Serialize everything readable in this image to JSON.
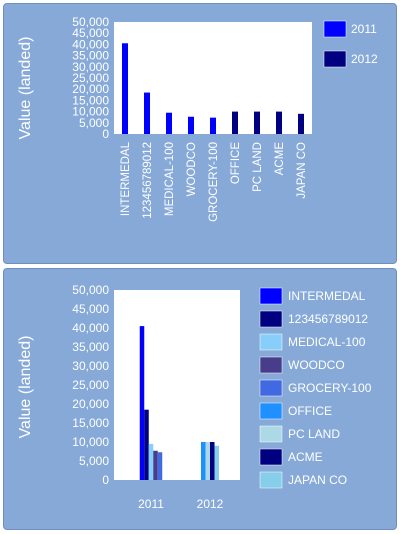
{
  "chart_data": [
    {
      "type": "bar",
      "ylabel": "Value (landed)",
      "ylim": [
        0,
        50000
      ],
      "yticks": [
        0,
        5000,
        10000,
        15000,
        20000,
        25000,
        30000,
        35000,
        40000,
        45000,
        50000
      ],
      "ytick_labels": [
        "0",
        "5,000",
        "10,000",
        "15,000",
        "20,000",
        "25,000",
        "30,000",
        "35,000",
        "40,000",
        "45,000",
        "50,000"
      ],
      "categories": [
        "INTERMEDAL",
        "123456789012",
        "MEDICAL-100",
        "WOODCO",
        "GROCERY-100",
        "OFFICE",
        "PC LAND",
        "ACME",
        "JAPAN CO"
      ],
      "series": [
        {
          "name": "2011",
          "color": "#0000ff",
          "values": [
            40500,
            18500,
            9500,
            7700,
            7300,
            null,
            null,
            null,
            null
          ]
        },
        {
          "name": "2012",
          "color": "#000080",
          "values": [
            null,
            null,
            null,
            null,
            null,
            10000,
            10000,
            10000,
            9000
          ]
        }
      ],
      "legend": "right",
      "grid": false
    },
    {
      "type": "bar",
      "ylabel": "Value (landed)",
      "ylim": [
        0,
        50000
      ],
      "yticks": [
        0,
        5000,
        10000,
        15000,
        20000,
        25000,
        30000,
        35000,
        40000,
        45000,
        50000
      ],
      "ytick_labels": [
        "0",
        "5,000",
        "10,000",
        "15,000",
        "20,000",
        "25,000",
        "30,000",
        "35,000",
        "40,000",
        "45,000",
        "50,000"
      ],
      "categories": [
        "2011",
        "2012"
      ],
      "series": [
        {
          "name": "INTERMEDAL",
          "color": "#0000ff",
          "values": [
            40500,
            null
          ]
        },
        {
          "name": "123456789012",
          "color": "#000080",
          "values": [
            18500,
            null
          ]
        },
        {
          "name": "MEDICAL-100",
          "color": "#87cefa",
          "values": [
            9500,
            null
          ]
        },
        {
          "name": "WOODCO",
          "color": "#483d8b",
          "values": [
            7700,
            null
          ]
        },
        {
          "name": "GROCERY-100",
          "color": "#4169e1",
          "values": [
            7300,
            null
          ]
        },
        {
          "name": "OFFICE",
          "color": "#1e90ff",
          "values": [
            null,
            10000
          ]
        },
        {
          "name": "PC LAND",
          "color": "#add8e6",
          "values": [
            null,
            10000
          ]
        },
        {
          "name": "ACME",
          "color": "#000080",
          "values": [
            null,
            10000
          ]
        },
        {
          "name": "JAPAN CO",
          "color": "#87ceeb",
          "values": [
            null,
            9000
          ]
        }
      ],
      "legend": "right",
      "grid": false
    }
  ]
}
